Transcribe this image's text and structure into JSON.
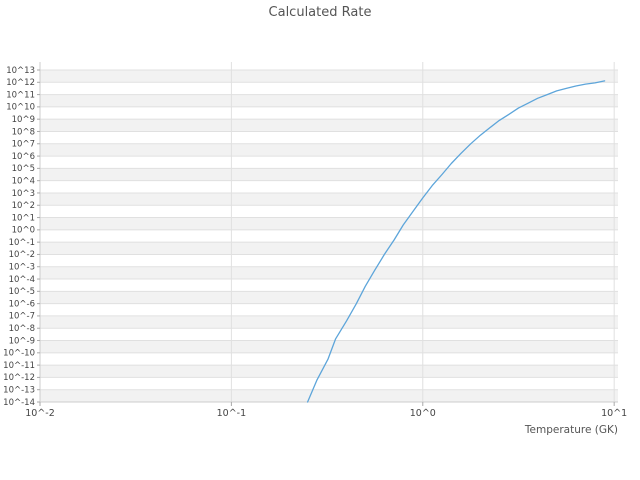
{
  "chart_data": {
    "type": "line",
    "title": "Calculated Rate",
    "xlabel": "Temperature (GK)",
    "ylabel": "",
    "x_scale": "log",
    "y_scale": "log",
    "grid": true,
    "legend": "none",
    "xlim_log10": [
      -2,
      1.02
    ],
    "ylim_log10": [
      -14,
      13.65
    ],
    "x_tick_labels": [
      "10^-2",
      "10^-1",
      "10^0",
      "10^1"
    ],
    "x_tick_log10": [
      -2,
      -1,
      0,
      1
    ],
    "y_tick_labels": [
      "10^13",
      "10^12",
      "10^11",
      "10^10",
      "10^9",
      "10^8",
      "10^7",
      "10^6",
      "10^5",
      "10^4",
      "10^3",
      "10^2",
      "10^1",
      "10^0",
      "10^-1",
      "10^-2",
      "10^-3",
      "10^-4",
      "10^-5",
      "10^-6",
      "10^-7",
      "10^-8",
      "10^-9",
      "10^-10",
      "10^-11",
      "10^-12",
      "10^-13",
      "10^-14"
    ],
    "y_tick_log10": [
      13,
      12,
      11,
      10,
      9,
      8,
      7,
      6,
      5,
      4,
      3,
      2,
      1,
      0,
      -1,
      -2,
      -3,
      -4,
      -5,
      -6,
      -7,
      -8,
      -9,
      -10,
      -11,
      -12,
      -13,
      -14
    ],
    "line_color": "#5da5da",
    "grid_color": "#e0e0e0",
    "band_color": "#f2f2f2",
    "axis_color": "#cccccc",
    "text_color": "#555555",
    "series": [
      {
        "name": "calculated rate",
        "points": [
          [
            0.25,
            1e-14
          ],
          [
            0.28,
            6.3e-13
          ],
          [
            0.32,
            3.2e-11
          ],
          [
            0.35,
            1.3e-09
          ],
          [
            0.4,
            4e-08
          ],
          [
            0.45,
            1e-06
          ],
          [
            0.5,
            2.5e-05
          ],
          [
            0.56,
            0.0005
          ],
          [
            0.63,
            0.01
          ],
          [
            0.71,
            0.16
          ],
          [
            0.79,
            2.5
          ],
          [
            0.89,
            32.0
          ],
          [
            1.0,
            400.0
          ],
          [
            1.12,
            4000.0
          ],
          [
            1.26,
            32000.0
          ],
          [
            1.41,
            250000.0
          ],
          [
            1.58,
            1600000.0
          ],
          [
            1.78,
            10000000.0
          ],
          [
            2.0,
            50000000.0
          ],
          [
            2.24,
            200000000.0
          ],
          [
            2.51,
            790000000.0
          ],
          [
            2.82,
            2500000000.0
          ],
          [
            3.16,
            7900000000.0
          ],
          [
            3.55,
            20000000000.0
          ],
          [
            3.98,
            50000000000.0
          ],
          [
            4.47,
            100000000000.0
          ],
          [
            5.01,
            200000000000.0
          ],
          [
            5.62,
            320000000000.0
          ],
          [
            6.31,
            500000000000.0
          ],
          [
            7.08,
            710000000000.0
          ],
          [
            7.94,
            890000000000.0
          ],
          [
            8.91,
            1300000000000.0
          ]
        ]
      }
    ]
  }
}
